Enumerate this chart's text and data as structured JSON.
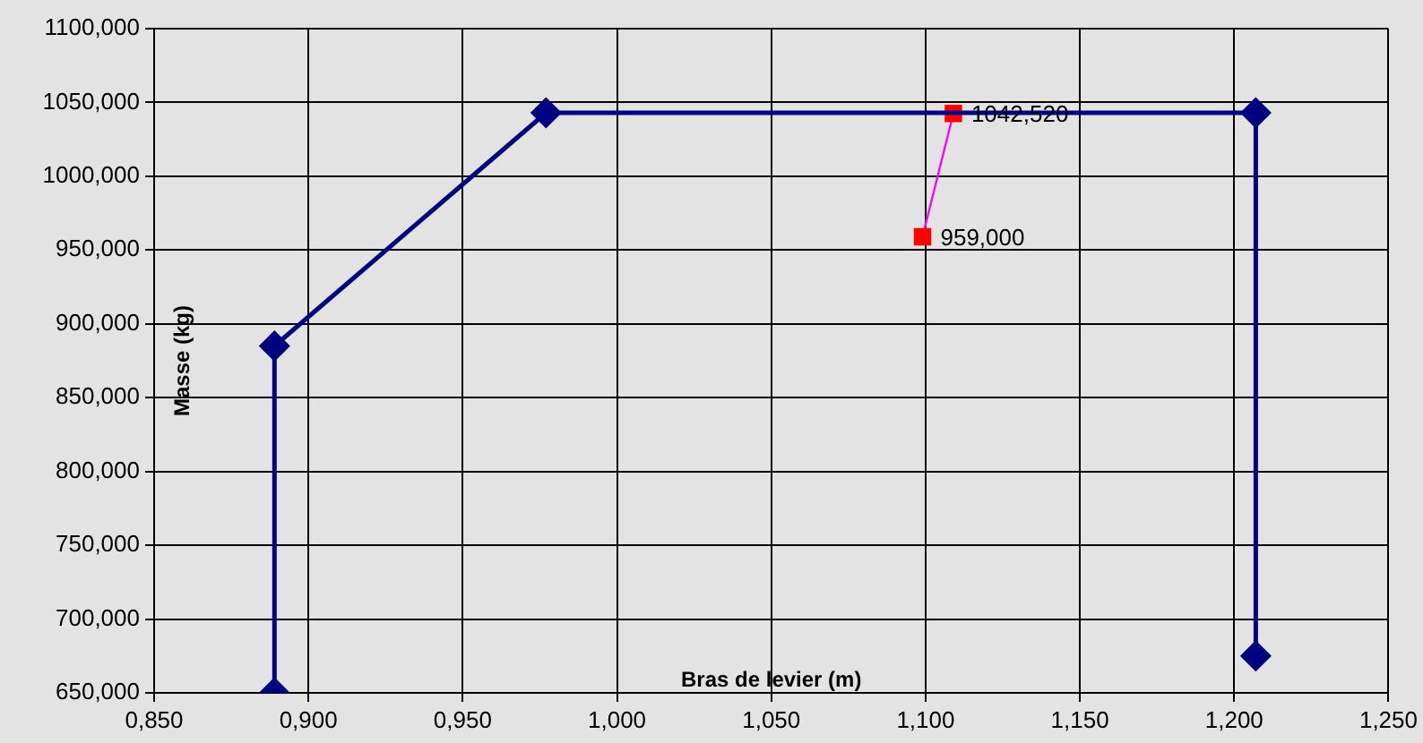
{
  "chart_data": {
    "type": "line",
    "xlabel": "Bras de levier (m)",
    "ylabel": "Masse (kg)",
    "xlim": [
      0.85,
      1.25
    ],
    "xticks": [
      {
        "value": 0.85,
        "label": "0,850"
      },
      {
        "value": 0.9,
        "label": "0,900"
      },
      {
        "value": 0.95,
        "label": "0,950"
      },
      {
        "value": 1.0,
        "label": "1,000"
      },
      {
        "value": 1.05,
        "label": "1,050"
      },
      {
        "value": 1.1,
        "label": "1,100"
      },
      {
        "value": 1.15,
        "label": "1,150"
      },
      {
        "value": 1.2,
        "label": "1,200"
      },
      {
        "value": 1.25,
        "label": "1,250"
      }
    ],
    "ylim": [
      650,
      1100
    ],
    "yticks": [
      {
        "value": 650,
        "label": "650,000"
      },
      {
        "value": 700,
        "label": "700,000"
      },
      {
        "value": 750,
        "label": "750,000"
      },
      {
        "value": 800,
        "label": "800,000"
      },
      {
        "value": 850,
        "label": "850,000"
      },
      {
        "value": 900,
        "label": "900,000"
      },
      {
        "value": 950,
        "label": "950,000"
      },
      {
        "value": 1000,
        "label": "1000,000"
      },
      {
        "value": 1050,
        "label": "1050,000"
      },
      {
        "value": 1100,
        "label": "1100,000"
      }
    ],
    "grid": true,
    "legend": false,
    "line_style": "solid",
    "series": [
      {
        "color": "#000080",
        "marker": "diamond",
        "x": [
          0.889,
          0.889,
          0.977,
          1.207,
          1.207
        ],
        "values": [
          650,
          885,
          1043,
          1043,
          675
        ]
      },
      {
        "color": "#ff00ff",
        "colors": [
          "#ff0000",
          "#ff0000"
        ],
        "marker": "square",
        "x": [
          1.099,
          1.109
        ],
        "values": [
          959,
          1042.52
        ],
        "value_labels": [
          "959,000",
          "1042,520"
        ]
      }
    ]
  }
}
